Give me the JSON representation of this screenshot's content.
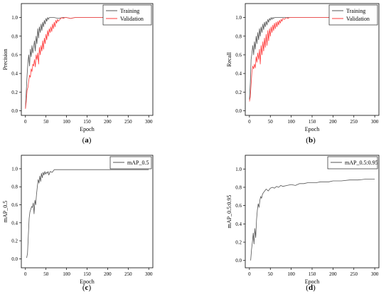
{
  "colors": {
    "training": "#555555",
    "validation": "#ff3b3b",
    "axis": "#000000"
  },
  "chart_data": [
    {
      "type": "line",
      "panel_label": "a",
      "xlabel": "Epoch",
      "ylabel": "Precision",
      "xlim": [
        -10,
        310
      ],
      "ylim": [
        -0.05,
        1.15
      ],
      "xticks": [
        0,
        50,
        100,
        150,
        200,
        250,
        300
      ],
      "yticks": [
        0.0,
        0.2,
        0.4,
        0.6,
        0.8,
        1.0
      ],
      "ytick_labels": [
        "0.0",
        "0.2",
        "0.4",
        "0.6",
        "0.8",
        "1.0"
      ],
      "legend": "top-right",
      "series": [
        {
          "name": "Training",
          "color": "#555555",
          "x": [
            0,
            2,
            4,
            6,
            8,
            10,
            12,
            14,
            16,
            18,
            20,
            22,
            24,
            26,
            28,
            30,
            32,
            34,
            36,
            38,
            40,
            42,
            44,
            46,
            48,
            50,
            52,
            54,
            56,
            58,
            60,
            65,
            70,
            80,
            90,
            100,
            110,
            120,
            130,
            140,
            150,
            200,
            250,
            300
          ],
          "y": [
            0.03,
            0.2,
            0.38,
            0.52,
            0.6,
            0.48,
            0.66,
            0.58,
            0.7,
            0.62,
            0.68,
            0.75,
            0.64,
            0.8,
            0.72,
            0.88,
            0.78,
            0.9,
            0.84,
            0.93,
            0.86,
            0.95,
            0.9,
            0.97,
            0.93,
            0.99,
            0.96,
            1.0,
            0.98,
            1.0,
            1.0,
            1.0,
            1.0,
            0.99,
            1.0,
            1.0,
            0.99,
            1.0,
            1.0,
            1.0,
            1.0,
            1.0,
            1.0,
            1.0
          ]
        },
        {
          "name": "Validation",
          "color": "#ff3b3b",
          "x": [
            0,
            2,
            4,
            6,
            8,
            10,
            12,
            14,
            16,
            18,
            20,
            22,
            24,
            26,
            28,
            30,
            32,
            34,
            36,
            38,
            40,
            42,
            44,
            46,
            48,
            50,
            52,
            54,
            56,
            58,
            60,
            62,
            64,
            66,
            68,
            70,
            72,
            74,
            76,
            78,
            80,
            84,
            88,
            92,
            96,
            100,
            110,
            120,
            130,
            150,
            200,
            250,
            300
          ],
          "y": [
            0.02,
            0.1,
            0.22,
            0.25,
            0.32,
            0.38,
            0.36,
            0.45,
            0.42,
            0.5,
            0.48,
            0.55,
            0.47,
            0.6,
            0.55,
            0.62,
            0.5,
            0.68,
            0.6,
            0.7,
            0.64,
            0.75,
            0.66,
            0.78,
            0.72,
            0.82,
            0.76,
            0.86,
            0.8,
            0.88,
            0.84,
            0.9,
            0.85,
            0.93,
            0.88,
            0.95,
            0.9,
            0.97,
            0.94,
            0.98,
            0.96,
            0.98,
            1.0,
            0.99,
            1.0,
            1.0,
            0.99,
            1.0,
            1.0,
            1.0,
            1.0,
            1.0,
            1.0
          ]
        }
      ]
    },
    {
      "type": "line",
      "panel_label": "b",
      "xlabel": "Epoch",
      "ylabel": "Recall",
      "xlim": [
        -10,
        310
      ],
      "ylim": [
        -0.05,
        1.15
      ],
      "xticks": [
        0,
        50,
        100,
        150,
        200,
        250,
        300
      ],
      "yticks": [
        0.0,
        0.2,
        0.4,
        0.6,
        0.8,
        1.0
      ],
      "ytick_labels": [
        "0.0",
        "0.2",
        "0.4",
        "0.6",
        "0.8",
        "1.0"
      ],
      "legend": "top-right",
      "series": [
        {
          "name": "Training",
          "color": "#555555",
          "x": [
            0,
            2,
            4,
            6,
            8,
            10,
            12,
            14,
            16,
            18,
            20,
            22,
            24,
            26,
            28,
            30,
            32,
            34,
            36,
            38,
            40,
            42,
            44,
            46,
            48,
            50,
            52,
            54,
            56,
            58,
            60,
            65,
            70,
            80,
            90,
            100,
            150,
            200,
            250,
            300
          ],
          "y": [
            0.12,
            0.3,
            0.55,
            0.62,
            0.7,
            0.6,
            0.74,
            0.66,
            0.8,
            0.72,
            0.84,
            0.76,
            0.88,
            0.8,
            0.9,
            0.84,
            0.93,
            0.87,
            0.95,
            0.9,
            0.96,
            0.92,
            0.98,
            0.95,
            0.99,
            0.97,
            1.0,
            0.98,
            1.0,
            0.99,
            1.0,
            1.0,
            1.0,
            1.0,
            1.0,
            1.0,
            1.0,
            1.0,
            1.0,
            1.0
          ]
        },
        {
          "name": "Validation",
          "color": "#ff3b3b",
          "x": [
            0,
            2,
            4,
            6,
            8,
            10,
            12,
            14,
            16,
            18,
            20,
            22,
            24,
            26,
            28,
            30,
            32,
            34,
            36,
            38,
            40,
            42,
            44,
            46,
            48,
            50,
            52,
            54,
            56,
            58,
            60,
            62,
            64,
            66,
            68,
            70,
            72,
            74,
            76,
            78,
            80,
            84,
            88,
            92,
            96,
            100,
            120,
            150,
            200,
            250,
            300
          ],
          "y": [
            0.1,
            0.15,
            0.28,
            0.42,
            0.48,
            0.45,
            0.5,
            0.46,
            0.58,
            0.52,
            0.62,
            0.55,
            0.66,
            0.5,
            0.7,
            0.6,
            0.74,
            0.64,
            0.78,
            0.68,
            0.82,
            0.7,
            0.86,
            0.75,
            0.88,
            0.8,
            0.9,
            0.84,
            0.92,
            0.86,
            0.94,
            0.88,
            0.95,
            0.9,
            0.96,
            0.92,
            0.97,
            0.94,
            0.98,
            0.96,
            0.99,
            0.98,
            1.0,
            0.99,
            1.0,
            1.0,
            1.0,
            1.0,
            1.0,
            1.0,
            1.0
          ]
        }
      ]
    },
    {
      "type": "line",
      "panel_label": "c",
      "xlabel": "Epoch",
      "ylabel": "mAP_0.5",
      "xlim": [
        -10,
        310
      ],
      "ylim": [
        -0.1,
        1.15
      ],
      "xticks": [
        0,
        50,
        100,
        150,
        200,
        250,
        300
      ],
      "yticks": [
        0.0,
        0.2,
        0.4,
        0.6,
        0.8,
        1.0
      ],
      "ytick_labels": [
        "0.0",
        "0.2",
        "0.4",
        "0.6",
        "0.8",
        "1.0"
      ],
      "legend": "top-right",
      "series": [
        {
          "name": "mAP_0.5",
          "color": "#555555",
          "x": [
            3,
            5,
            7,
            9,
            11,
            13,
            15,
            17,
            19,
            21,
            23,
            25,
            27,
            29,
            31,
            33,
            35,
            37,
            39,
            41,
            43,
            45,
            47,
            49,
            51,
            53,
            55,
            57,
            60,
            65,
            70,
            75,
            80,
            90,
            100,
            150,
            200,
            250,
            300
          ],
          "y": [
            0.01,
            0.06,
            0.25,
            0.45,
            0.52,
            0.55,
            0.58,
            0.57,
            0.62,
            0.5,
            0.65,
            0.6,
            0.72,
            0.8,
            0.88,
            0.84,
            0.92,
            0.86,
            0.95,
            0.9,
            0.96,
            0.93,
            0.97,
            0.94,
            0.96,
            0.95,
            0.97,
            0.93,
            0.97,
            0.96,
            0.99,
            0.99,
            0.99,
            0.99,
            0.99,
            0.99,
            0.99,
            0.99,
            0.99
          ]
        }
      ]
    },
    {
      "type": "line",
      "panel_label": "d",
      "xlabel": "Epoch",
      "ylabel": "mAP_0.5:0.95",
      "xlim": [
        -10,
        310
      ],
      "ylim": [
        -0.08,
        1.15
      ],
      "xticks": [
        0,
        50,
        100,
        150,
        200,
        250,
        300
      ],
      "yticks": [
        0.0,
        0.2,
        0.4,
        0.6,
        0.8,
        1.0
      ],
      "ytick_labels": [
        "0.0",
        "0.2",
        "0.4",
        "0.6",
        "0.8",
        "1.0"
      ],
      "legend": "top-right",
      "series": [
        {
          "name": "mAP_0.5:0.95",
          "color": "#555555",
          "x": [
            3,
            5,
            7,
            9,
            11,
            13,
            15,
            17,
            19,
            21,
            23,
            25,
            27,
            29,
            31,
            33,
            35,
            40,
            45,
            50,
            55,
            60,
            65,
            70,
            75,
            80,
            90,
            100,
            110,
            120,
            130,
            140,
            150,
            160,
            170,
            180,
            190,
            200,
            220,
            240,
            260,
            280,
            300
          ],
          "y": [
            0.0,
            0.12,
            0.2,
            0.3,
            0.18,
            0.35,
            0.25,
            0.45,
            0.55,
            0.62,
            0.58,
            0.66,
            0.7,
            0.68,
            0.72,
            0.74,
            0.75,
            0.78,
            0.76,
            0.79,
            0.8,
            0.79,
            0.81,
            0.8,
            0.82,
            0.81,
            0.82,
            0.83,
            0.82,
            0.84,
            0.84,
            0.85,
            0.85,
            0.85,
            0.86,
            0.86,
            0.86,
            0.87,
            0.87,
            0.88,
            0.88,
            0.89,
            0.89
          ]
        }
      ]
    }
  ]
}
